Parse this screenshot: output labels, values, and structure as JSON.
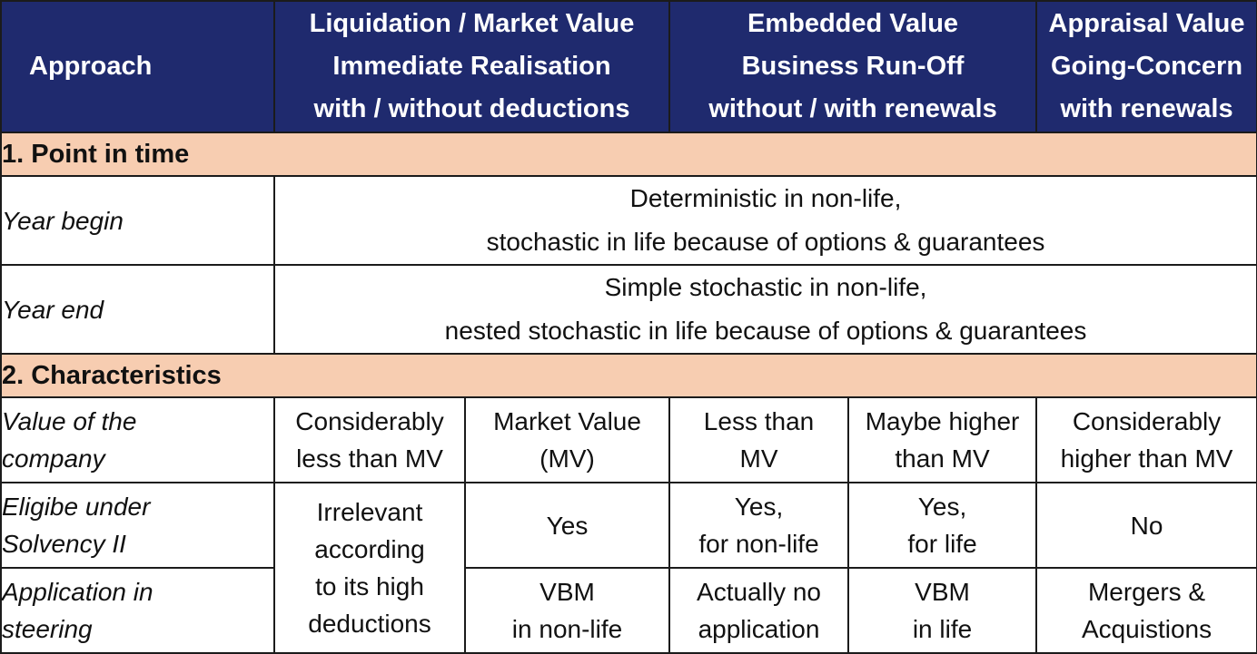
{
  "header": {
    "approach": "Approach",
    "liquidation": [
      "Liquidation / Market Value",
      "Immediate Realisation",
      "with / without deductions"
    ],
    "embedded": [
      "Embedded Value",
      "Business Run-Off",
      "without / with renewals"
    ],
    "appraisal": [
      "Appraisal Value",
      "Going-Concern",
      "with renewals"
    ]
  },
  "section1": {
    "title": "1. Point in time",
    "rows": [
      {
        "label": "Year begin",
        "value": [
          "Deterministic in non-life,",
          "stochastic in life because of options & guarantees"
        ]
      },
      {
        "label": "Year end",
        "value": [
          "Simple stochastic in non-life,",
          "nested stochastic in life because of options & guarantees"
        ]
      }
    ]
  },
  "section2": {
    "title": "2. Characteristics",
    "value_row": {
      "label": [
        "Value of the",
        "company"
      ],
      "cells": [
        [
          "Considerably",
          "less than MV"
        ],
        [
          "Market Value",
          "(MV)"
        ],
        [
          "Less than",
          "MV"
        ],
        [
          "Maybe higher",
          "than MV"
        ],
        [
          "Considerably",
          "higher than MV"
        ]
      ]
    },
    "eligible_row": {
      "label": [
        "Eligibe under",
        "Solvency II"
      ],
      "irrelevant": [
        "Irrelevant",
        "according",
        "to its high",
        "deductions"
      ],
      "cells": [
        [
          "Yes"
        ],
        [
          "Yes,",
          "for non-life"
        ],
        [
          "Yes,",
          "for life"
        ],
        [
          "No"
        ]
      ]
    },
    "application_row": {
      "label": [
        "Application in",
        "steering"
      ],
      "cells": [
        [
          "VBM",
          "in non-life"
        ],
        [
          "Actually no",
          "application"
        ],
        [
          "VBM",
          "in life"
        ],
        [
          "Mergers &",
          "Acquistions"
        ]
      ]
    }
  }
}
